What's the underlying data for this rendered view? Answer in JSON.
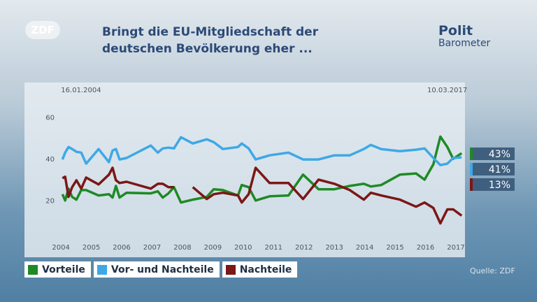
{
  "branding": {
    "logo": "ZDF",
    "brand_top": "Polit",
    "brand_bottom": "Barometer"
  },
  "chart_data": {
    "type": "line",
    "title": "Bringt die EU-Mitgliedschaft der deutschen Bevölkerung eher ...",
    "start_date": "16.01.2004",
    "end_date": "10.03.2017",
    "source": "Quelle: ZDF",
    "x": [
      2004.05,
      2004.14,
      2004.25,
      2004.37,
      2004.51,
      2004.67,
      2004.83,
      2005.24,
      2005.58,
      2005.7,
      2005.81,
      2005.93,
      2006.16,
      2006.96,
      2007.19,
      2007.35,
      2007.54,
      2007.72,
      2007.95,
      2008.34,
      2008.8,
      2009.03,
      2009.33,
      2009.83,
      2009.95,
      2010.18,
      2010.41,
      2010.87,
      2011.49,
      2011.97,
      2012.48,
      2013.0,
      2013.51,
      2013.97,
      2014.2,
      2014.54,
      2015.16,
      2015.69,
      2015.97,
      2016.26,
      2016.49,
      2016.72,
      2016.91,
      2017.19
    ],
    "series": [
      {
        "name": "Vorteile",
        "color": "#1e8a24",
        "values": [
          23.3,
          20.3,
          26,
          22,
          20.7,
          25.3,
          25.3,
          22.7,
          23.3,
          21.7,
          27.3,
          21.7,
          24,
          23.7,
          24.7,
          21.7,
          23.7,
          26.7,
          19.3,
          20.7,
          22,
          25.7,
          25.3,
          22.7,
          27.7,
          26.7,
          20.3,
          22.3,
          22.7,
          32.7,
          25.7,
          25.7,
          27.3,
          28.3,
          27,
          27.7,
          32.7,
          33.3,
          30.3,
          37.7,
          51,
          46,
          40.3,
          43
        ],
        "value_labels": [
          null,
          null,
          null,
          null,
          null,
          null,
          null,
          null,
          null,
          null,
          null,
          null,
          null,
          null,
          null,
          null,
          null,
          null,
          null,
          null,
          null,
          null,
          null,
          null,
          null,
          null,
          null,
          null,
          null,
          null,
          null,
          null,
          null,
          null,
          null,
          null,
          null,
          null,
          null,
          null,
          null,
          null,
          null,
          "43%"
        ]
      },
      {
        "name": "Vor- und Nachteile",
        "color": "#3ea8e6",
        "values": [
          40,
          43.3,
          46,
          45,
          43.7,
          43.3,
          38,
          45,
          38.7,
          44.3,
          45,
          40,
          40.7,
          46.7,
          43.3,
          45.3,
          45.7,
          45.3,
          50.7,
          47.7,
          49.7,
          48.3,
          45,
          46,
          47.7,
          45.3,
          40,
          42,
          43.3,
          40,
          40,
          42,
          42,
          45,
          47,
          45,
          44,
          44.7,
          45.3,
          40.7,
          37.3,
          38,
          40.7,
          41
        ],
        "value_labels": [
          null,
          null,
          null,
          null,
          null,
          null,
          null,
          null,
          null,
          null,
          null,
          null,
          null,
          null,
          null,
          null,
          null,
          null,
          null,
          null,
          null,
          null,
          null,
          null,
          null,
          null,
          null,
          null,
          null,
          null,
          null,
          null,
          null,
          null,
          null,
          null,
          null,
          null,
          null,
          null,
          null,
          null,
          null,
          "41%"
        ]
      },
      {
        "name": "Nachteile",
        "color": "#7b1716",
        "values": [
          31,
          31.7,
          22,
          26.7,
          30,
          26,
          31.3,
          28,
          32.7,
          36,
          30,
          28.7,
          29.3,
          26,
          28.3,
          28.3,
          26.7,
          26.7,
          null,
          26.7,
          21,
          23.3,
          24,
          22.7,
          19.3,
          23.3,
          36,
          28.7,
          28.7,
          21,
          30.3,
          28.3,
          25.3,
          20.7,
          24,
          22.7,
          20.7,
          17.3,
          19.3,
          16.7,
          9.3,
          16,
          16,
          13
        ],
        "value_labels": [
          null,
          null,
          null,
          null,
          null,
          null,
          null,
          null,
          null,
          null,
          null,
          null,
          null,
          null,
          null,
          null,
          null,
          null,
          null,
          null,
          null,
          null,
          null,
          null,
          null,
          null,
          null,
          null,
          null,
          null,
          null,
          null,
          null,
          null,
          null,
          null,
          null,
          null,
          null,
          null,
          null,
          null,
          null,
          "13%"
        ]
      }
    ],
    "xlim": [
      2002.8,
      2017.3
    ],
    "xticks": [
      2004,
      2005,
      2006,
      2007,
      2008,
      2009,
      2010,
      2011,
      2012,
      2013,
      2014,
      2015,
      2016,
      2017
    ],
    "ylim": [
      -7,
      77
    ],
    "yticks": [
      20,
      40,
      60
    ],
    "grid": false
  }
}
